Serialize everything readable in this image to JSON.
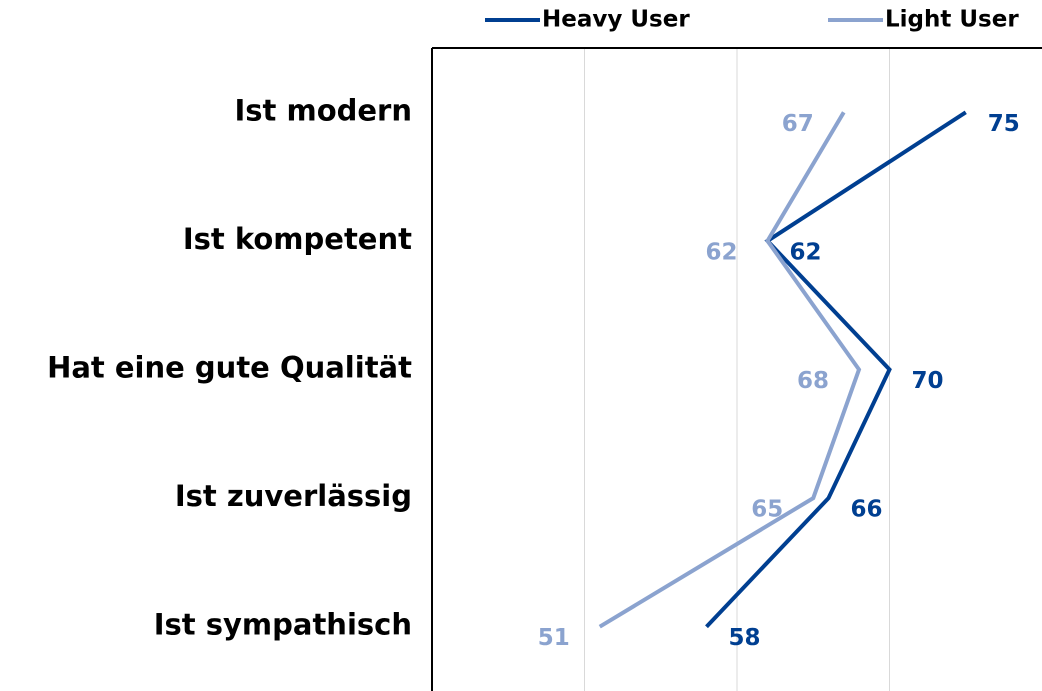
{
  "chart_data": {
    "type": "line",
    "orientation": "horizontal",
    "categories": [
      "Ist modern",
      "Ist kompetent",
      "Hat eine gute Qualität",
      "Ist zuverlässig",
      "Ist sympathisch"
    ],
    "series": [
      {
        "name": "Heavy User",
        "color": "#003f91",
        "values": [
          75,
          62,
          70,
          66,
          58
        ]
      },
      {
        "name": "Light User",
        "color": "#8ba3cf",
        "values": [
          67,
          62,
          68,
          65,
          51
        ]
      }
    ],
    "xlim": [
      40,
      80
    ],
    "xticks": [
      50,
      60,
      70
    ],
    "grid": true,
    "legend": "top"
  }
}
